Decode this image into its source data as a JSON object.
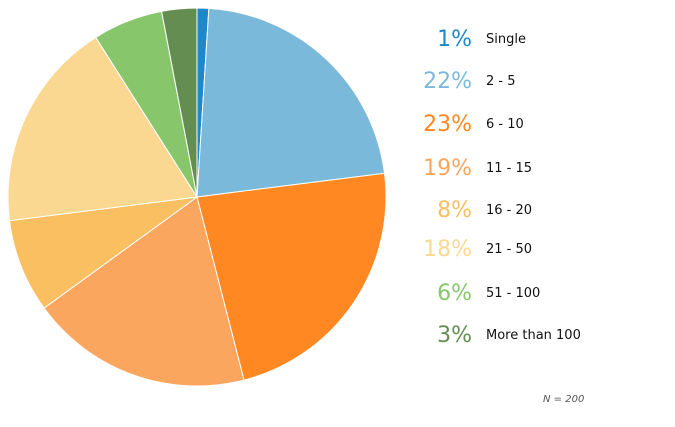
{
  "chart_data": {
    "type": "pie",
    "categories": [
      "Single",
      "2 - 5",
      "6 - 10",
      "11 - 15",
      "16 - 20",
      "21 - 50",
      "51 - 100",
      "More than 100"
    ],
    "values": [
      1,
      22,
      23,
      19,
      8,
      18,
      6,
      3
    ],
    "value_labels": [
      "1%",
      "22%",
      "23%",
      "19%",
      "8%",
      "18%",
      "6%",
      "3%"
    ],
    "colors": [
      "#1f87cc",
      "#7bb9da",
      "#ff8822",
      "#faa65f",
      "#f9bf60",
      "#fad891",
      "#88c66b",
      "#648e51"
    ],
    "note": "N = 200",
    "legend_position": "right"
  }
}
